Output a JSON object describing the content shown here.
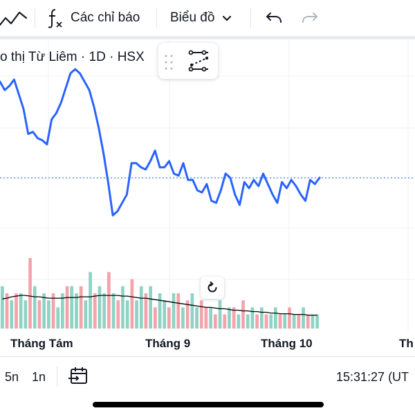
{
  "toolbar": {
    "indicators_label": "Các chỉ báo",
    "chart_type_label": "Biểu đồ",
    "icons": [
      "line-chart-icon",
      "function-icon",
      "chevron-down-icon",
      "undo-icon",
      "redo-icon"
    ]
  },
  "legend": {
    "title": "o thị Từ Liêm · 1D · HSX"
  },
  "bottom_bar": {
    "ranges": [
      "5n",
      "1n"
    ],
    "time": "15:31:27 (UT"
  },
  "colors": {
    "price_line": "#2962ff",
    "volume_up": "#8fd3c4",
    "volume_down": "#f4a3ab",
    "volume_ma": "#000000",
    "last_price_line": "#2962ff"
  },
  "chart_data": {
    "type": "line",
    "title": "",
    "x_tick_labels": [
      "Tháng Tám",
      "Tháng 9",
      "Tháng 10",
      "Th"
    ],
    "price": {
      "values": [
        0.94,
        0.9,
        0.92,
        0.95,
        0.88,
        0.81,
        0.69,
        0.7,
        0.67,
        0.66,
        0.64,
        0.76,
        0.79,
        0.84,
        0.91,
        0.98,
        1.0,
        0.98,
        0.94,
        0.9,
        0.82,
        0.72,
        0.6,
        0.46,
        0.3,
        0.32,
        0.36,
        0.4,
        0.55,
        0.55,
        0.53,
        0.52,
        0.56,
        0.61,
        0.53,
        0.53,
        0.56,
        0.5,
        0.49,
        0.55,
        0.47,
        0.47,
        0.42,
        0.41,
        0.45,
        0.37,
        0.36,
        0.42,
        0.5,
        0.48,
        0.4,
        0.35,
        0.46,
        0.43,
        0.47,
        0.44,
        0.5,
        0.45,
        0.4,
        0.36,
        0.46,
        0.43,
        0.47,
        0.44,
        0.4,
        0.37,
        0.47,
        0.45,
        0.48
      ]
    },
    "volume": {
      "values": [
        0.6,
        0.5,
        0.4,
        0.5,
        0.5,
        0.4,
        1.0,
        0.6,
        0.4,
        0.5,
        0.4,
        0.5,
        0.3,
        0.5,
        0.6,
        0.6,
        0.5,
        0.6,
        0.4,
        0.8,
        0.5,
        0.6,
        0.5,
        0.8,
        0.5,
        0.4,
        0.6,
        0.4,
        0.7,
        0.4,
        0.6,
        0.5,
        0.6,
        0.3,
        0.5,
        0.4,
        0.3,
        0.5,
        0.5,
        0.3,
        0.4,
        0.5,
        0.3,
        0.4,
        0.3,
        0.3,
        0.2,
        0.4,
        0.2,
        0.3,
        0.3,
        0.2,
        0.4,
        0.2,
        0.3,
        0.2,
        0.3,
        0.2,
        0.2,
        0.3,
        0.2,
        0.2,
        0.3,
        0.2,
        0.2,
        0.3,
        0.2,
        0.2,
        0.2
      ],
      "up": [
        true,
        false,
        true,
        false,
        true,
        true,
        false,
        true,
        false,
        true,
        true,
        false,
        true,
        true,
        false,
        true,
        true,
        false,
        true,
        true,
        false,
        true,
        true,
        false,
        true,
        false,
        true,
        true,
        false,
        true,
        true,
        false,
        true,
        false,
        true,
        true,
        false,
        true,
        false,
        true,
        false,
        true,
        true,
        false,
        false,
        true,
        false,
        true,
        false,
        true,
        false,
        true,
        false,
        true,
        true,
        false,
        true,
        false,
        true,
        true,
        false,
        true,
        false,
        true,
        false,
        true,
        false,
        true,
        true
      ],
      "ma": [
        0.42,
        0.43,
        0.45,
        0.46,
        0.47,
        0.47,
        0.46,
        0.45,
        0.45,
        0.44,
        0.43,
        0.43,
        0.43,
        0.43,
        0.44,
        0.44,
        0.44,
        0.45,
        0.45,
        0.45,
        0.46,
        0.47,
        0.47,
        0.47,
        0.47,
        0.47,
        0.46,
        0.46,
        0.45,
        0.44,
        0.43,
        0.43,
        0.42,
        0.41,
        0.4,
        0.39,
        0.38,
        0.37,
        0.36,
        0.35,
        0.34,
        0.33,
        0.32,
        0.31,
        0.3,
        0.3,
        0.29,
        0.28,
        0.28,
        0.27,
        0.26,
        0.26,
        0.25,
        0.25,
        0.24,
        0.24,
        0.23,
        0.23,
        0.22,
        0.22,
        0.21,
        0.21,
        0.21,
        0.2,
        0.2,
        0.2,
        0.19,
        0.19,
        0.19
      ]
    },
    "last_price_level": 0.48,
    "grid": true
  }
}
